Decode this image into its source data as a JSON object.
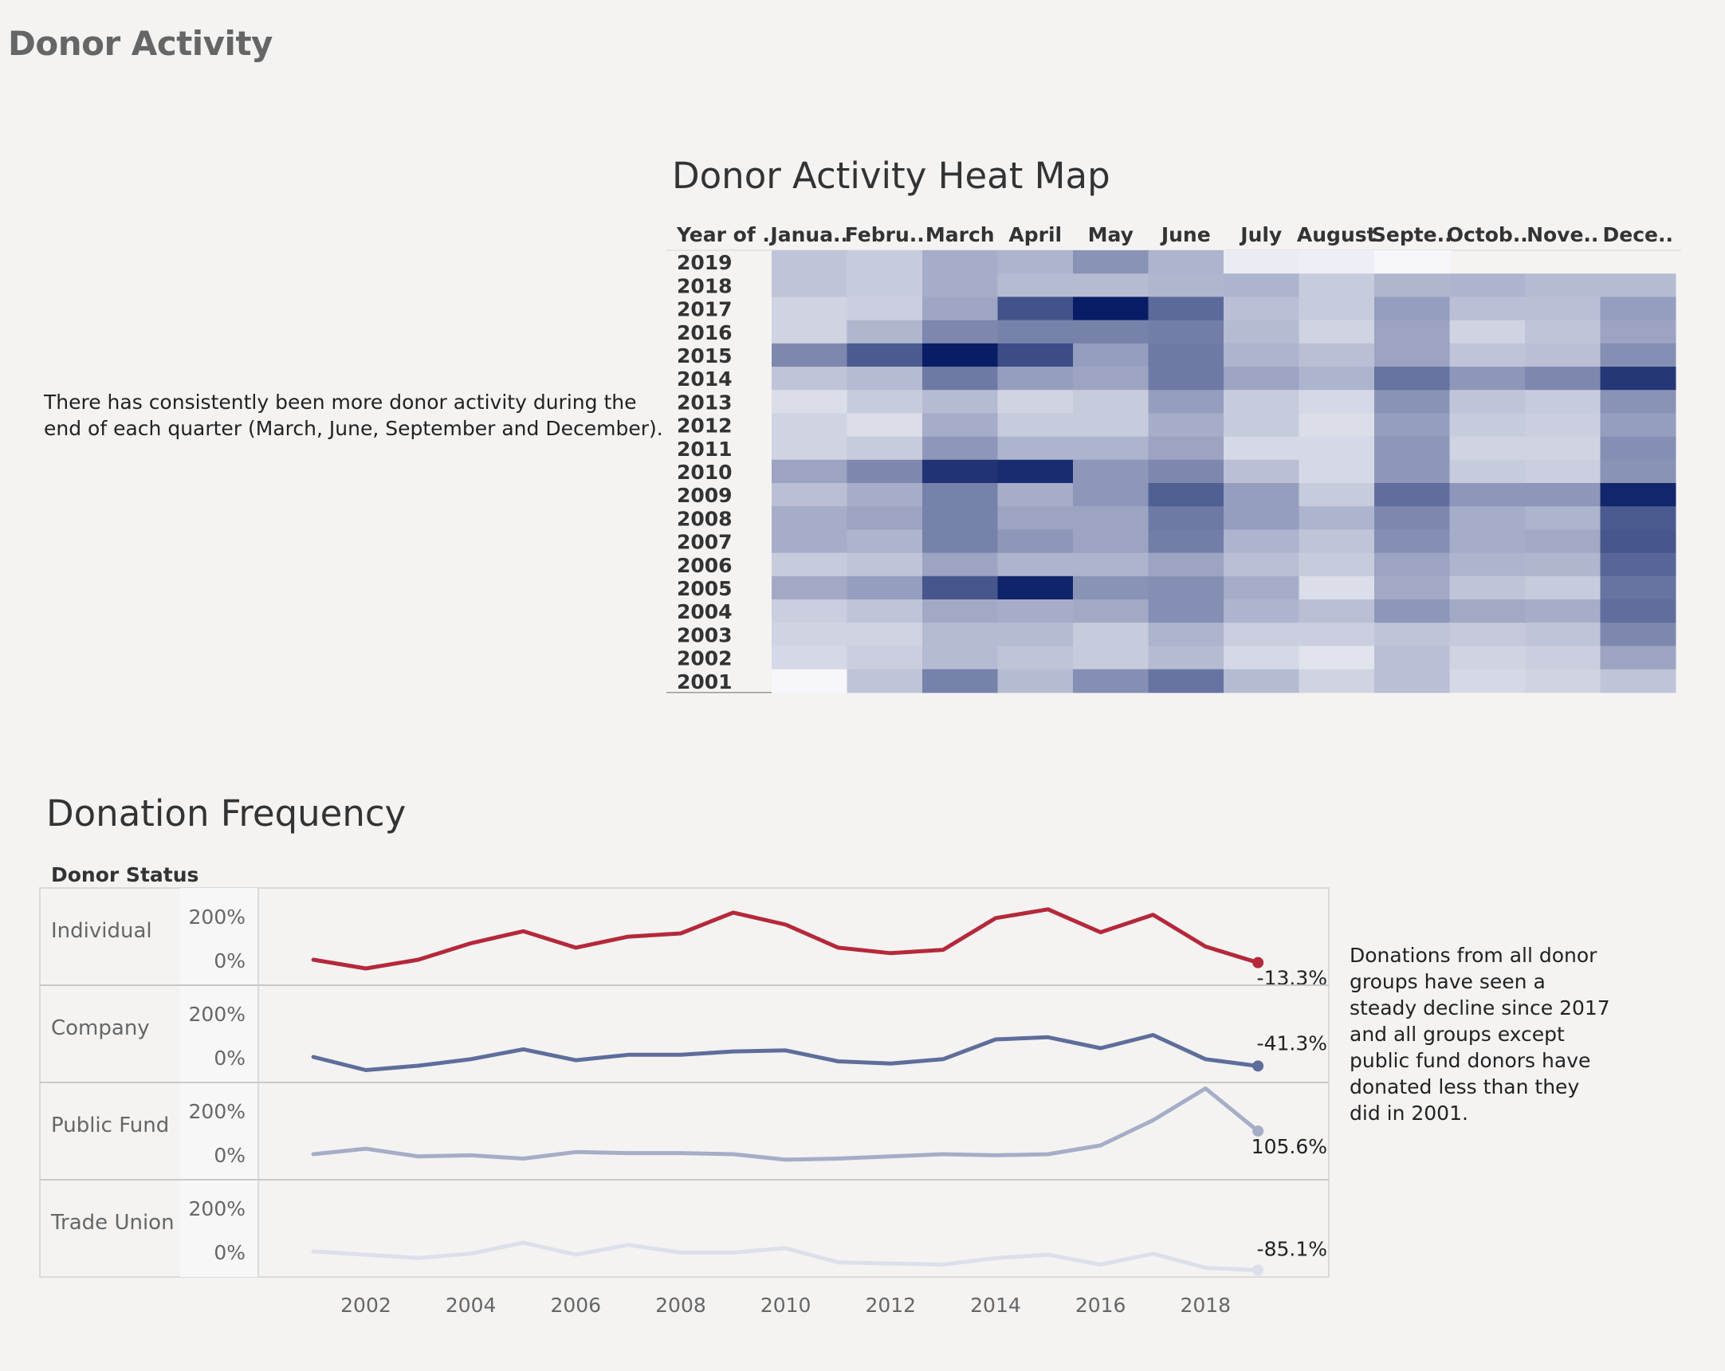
{
  "page_title": "Donor Activity",
  "heatmap_note": "There has consistently been more donor activity during the end of each quarter (March, June, September and December).",
  "frequency_note": "Donations from all donor groups have seen a steady decline since 2017 and all groups except public fund donors have donated less than they did in 2001.",
  "chart_data": [
    {
      "type": "heatmap",
      "title": "Donor Activity Heat Map",
      "row_header": "Year of ..",
      "columns": [
        "Janua..",
        "Febru..",
        "March",
        "April",
        "May",
        "June",
        "July",
        "August",
        "Septe..",
        "Octob..",
        "Nove..",
        "Dece.."
      ],
      "rows": [
        "2019",
        "2018",
        "2017",
        "2016",
        "2015",
        "2014",
        "2013",
        "2012",
        "2011",
        "2010",
        "2009",
        "2008",
        "2007",
        "2006",
        "2005",
        "2004",
        "2003",
        "2002",
        "2001"
      ],
      "values": [
        [
          18,
          15,
          28,
          25,
          40,
          25,
          3,
          2,
          0,
          null,
          null,
          null
        ],
        [
          18,
          15,
          28,
          22,
          22,
          24,
          25,
          15,
          24,
          25,
          22,
          22
        ],
        [
          12,
          14,
          31,
          72,
          100,
          60,
          20,
          15,
          35,
          20,
          20,
          35
        ],
        [
          12,
          24,
          45,
          48,
          48,
          50,
          22,
          12,
          32,
          12,
          18,
          32
        ],
        [
          45,
          68,
          100,
          75,
          35,
          52,
          25,
          20,
          32,
          18,
          20,
          42
        ],
        [
          18,
          22,
          52,
          35,
          32,
          52,
          32,
          25,
          55,
          38,
          45,
          86
        ],
        [
          8,
          15,
          22,
          12,
          15,
          35,
          15,
          10,
          40,
          18,
          15,
          40
        ],
        [
          12,
          8,
          28,
          15,
          15,
          28,
          15,
          8,
          35,
          15,
          14,
          35
        ],
        [
          12,
          15,
          38,
          25,
          25,
          32,
          10,
          10,
          38,
          12,
          12,
          42
        ],
        [
          32,
          45,
          88,
          92,
          38,
          45,
          20,
          10,
          38,
          15,
          14,
          40
        ],
        [
          20,
          28,
          48,
          28,
          38,
          65,
          35,
          15,
          58,
          38,
          38,
          95
        ],
        [
          28,
          32,
          48,
          32,
          32,
          52,
          35,
          25,
          45,
          28,
          25,
          68
        ],
        [
          28,
          25,
          48,
          38,
          32,
          50,
          25,
          18,
          42,
          28,
          30,
          70
        ],
        [
          15,
          18,
          32,
          25,
          25,
          32,
          20,
          15,
          32,
          25,
          24,
          62
        ],
        [
          30,
          35,
          70,
          96,
          40,
          42,
          28,
          8,
          30,
          18,
          15,
          55
        ],
        [
          14,
          18,
          30,
          28,
          30,
          42,
          25,
          20,
          38,
          30,
          28,
          58
        ],
        [
          12,
          12,
          22,
          22,
          15,
          25,
          14,
          14,
          18,
          16,
          18,
          45
        ],
        [
          10,
          14,
          22,
          18,
          15,
          22,
          10,
          6,
          20,
          12,
          14,
          32
        ],
        [
          0,
          18,
          48,
          22,
          42,
          55,
          22,
          12,
          20,
          10,
          12,
          18
        ]
      ]
    },
    {
      "type": "line",
      "title": "Donation Frequency",
      "row_header": "Donor Status",
      "x": [
        2001,
        2002,
        2003,
        2004,
        2005,
        2006,
        2007,
        2008,
        2009,
        2010,
        2011,
        2012,
        2013,
        2014,
        2015,
        2016,
        2017,
        2018,
        2019
      ],
      "xticks": [
        2002,
        2004,
        2006,
        2008,
        2010,
        2012,
        2014,
        2016,
        2018
      ],
      "yticks": [
        "200%",
        "0%"
      ],
      "series": [
        {
          "name": "Individual",
          "color": "#b5283a",
          "values": [
            0,
            -40,
            0,
            75,
            130,
            55,
            105,
            120,
            215,
            160,
            55,
            30,
            45,
            190,
            230,
            125,
            205,
            60,
            -13.3
          ],
          "end_label": "-13.3%"
        },
        {
          "name": "Company",
          "color": "#5f6d9b",
          "values": [
            0,
            -60,
            -40,
            -10,
            35,
            -15,
            10,
            10,
            25,
            30,
            -20,
            -30,
            -10,
            80,
            90,
            40,
            100,
            -10,
            -41.3
          ],
          "end_label": "-41.3%"
        },
        {
          "name": "Public Fund",
          "color": "#a6adc6",
          "values": [
            0,
            25,
            -10,
            -5,
            -20,
            10,
            5,
            5,
            0,
            -25,
            -20,
            -10,
            0,
            -5,
            0,
            40,
            155,
            300,
            105.6
          ],
          "end_label": "105.6%"
        },
        {
          "name": "Trade Union",
          "color": "#dde0ea",
          "values": [
            0,
            -15,
            -30,
            -10,
            40,
            -15,
            30,
            -5,
            -5,
            15,
            -50,
            -55,
            -60,
            -30,
            -15,
            -60,
            -10,
            -75,
            -85.1
          ],
          "end_label": "-85.1%"
        }
      ]
    }
  ]
}
